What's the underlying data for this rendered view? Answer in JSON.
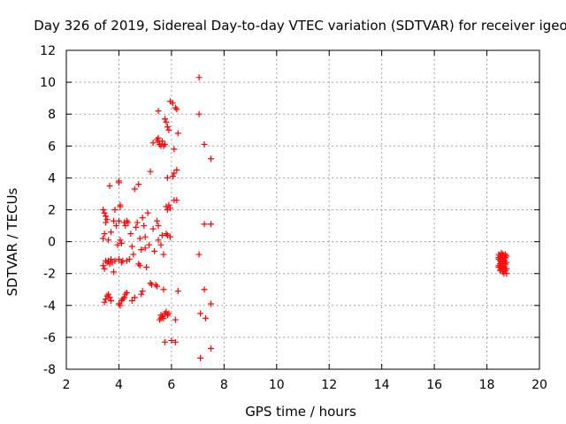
{
  "chart_data": {
    "type": "scatter",
    "title": "Day 326 of 2019, Sidereal Day-to-day VTEC variation (SDTVAR) for receiver igeo",
    "xlabel": "GPS time / hours",
    "ylabel": "SDTVAR / TECUs",
    "xlim": [
      2,
      20
    ],
    "ylim": [
      -8,
      12
    ],
    "xticks": [
      2,
      4,
      6,
      8,
      10,
      12,
      14,
      16,
      18,
      20
    ],
    "xtick_labels": [
      "2",
      "4",
      "6",
      "8",
      "10",
      "12",
      "14",
      "16",
      "18",
      "20"
    ],
    "yticks": [
      -8,
      -6,
      -4,
      -2,
      0,
      2,
      4,
      6,
      8,
      10,
      12
    ],
    "ytick_labels": [
      "-8",
      "-6",
      "-4",
      "-2",
      "0",
      "2",
      "4",
      "6",
      "8",
      "10",
      "12"
    ],
    "grid": true,
    "marker": "+",
    "color": "#ff0000",
    "series": [
      {
        "name": "SDTVAR",
        "points": [
          [
            3.4,
            2.0
          ],
          [
            3.45,
            1.8
          ],
          [
            3.5,
            1.6
          ],
          [
            3.55,
            1.4
          ],
          [
            3.5,
            1.2
          ],
          [
            3.45,
            0.5
          ],
          [
            3.4,
            0.2
          ],
          [
            3.6,
            0.1
          ],
          [
            3.65,
            3.5
          ],
          [
            3.7,
            0.6
          ],
          [
            3.5,
            -1.2
          ],
          [
            3.4,
            -1.5
          ],
          [
            3.45,
            -1.7
          ],
          [
            3.55,
            -1.3
          ],
          [
            3.6,
            -1.2
          ],
          [
            3.65,
            -1.4
          ],
          [
            3.7,
            -1.1
          ],
          [
            3.75,
            -1.3
          ],
          [
            3.8,
            -1.9
          ],
          [
            3.85,
            -1.2
          ],
          [
            3.45,
            -3.8
          ],
          [
            3.5,
            -3.6
          ],
          [
            3.55,
            -3.4
          ],
          [
            3.6,
            -3.3
          ],
          [
            3.65,
            -3.5
          ],
          [
            3.7,
            -3.7
          ],
          [
            3.8,
            1.3
          ],
          [
            3.85,
            2.0
          ],
          [
            3.9,
            1.0
          ],
          [
            3.95,
            -0.2
          ],
          [
            4.0,
            3.7
          ],
          [
            4.0,
            3.8
          ],
          [
            4.05,
            2.3
          ],
          [
            4.05,
            2.2
          ],
          [
            4.0,
            1.3
          ],
          [
            4.05,
            0.1
          ],
          [
            4.1,
            -0.1
          ],
          [
            4.0,
            -1.1
          ],
          [
            4.1,
            -1.3
          ],
          [
            4.15,
            -1.2
          ],
          [
            4.0,
            -3.9
          ],
          [
            4.05,
            -4.0
          ],
          [
            4.1,
            -3.7
          ],
          [
            4.15,
            -3.6
          ],
          [
            4.2,
            -3.5
          ],
          [
            4.25,
            -3.3
          ],
          [
            4.3,
            -3.2
          ],
          [
            4.2,
            1.2
          ],
          [
            4.25,
            1.0
          ],
          [
            4.3,
            1.3
          ],
          [
            4.35,
            1.2
          ],
          [
            4.3,
            -1.2
          ],
          [
            4.4,
            -1.1
          ],
          [
            4.45,
            0.5
          ],
          [
            4.5,
            -0.3
          ],
          [
            4.55,
            -0.8
          ],
          [
            4.5,
            -3.7
          ],
          [
            4.6,
            -3.5
          ],
          [
            4.6,
            3.3
          ],
          [
            4.65,
            0.9
          ],
          [
            4.7,
            1.2
          ],
          [
            4.75,
            -1.4
          ],
          [
            4.75,
            3.6
          ],
          [
            4.8,
            0.2
          ],
          [
            4.85,
            -0.5
          ],
          [
            4.8,
            -1.5
          ],
          [
            4.85,
            -3.3
          ],
          [
            4.9,
            -3.1
          ],
          [
            4.9,
            1.5
          ],
          [
            4.95,
            1.0
          ],
          [
            5.0,
            0.3
          ],
          [
            5.0,
            -0.4
          ],
          [
            5.05,
            -1.6
          ],
          [
            5.1,
            1.8
          ],
          [
            5.15,
            -0.2
          ],
          [
            5.2,
            4.4
          ],
          [
            5.2,
            -2.6
          ],
          [
            5.25,
            -2.7
          ],
          [
            5.3,
            6.2
          ],
          [
            5.3,
            0.8
          ],
          [
            5.35,
            -0.6
          ],
          [
            5.4,
            -2.7
          ],
          [
            5.45,
            6.4
          ],
          [
            5.45,
            1.3
          ],
          [
            5.45,
            -2.8
          ],
          [
            5.5,
            8.2
          ],
          [
            5.5,
            6.5
          ],
          [
            5.5,
            6.3
          ],
          [
            5.5,
            1.0
          ],
          [
            5.5,
            0.1
          ],
          [
            5.55,
            6.1
          ],
          [
            5.55,
            -4.9
          ],
          [
            5.6,
            6.0
          ],
          [
            5.6,
            -0.2
          ],
          [
            5.6,
            -4.8
          ],
          [
            5.6,
            -4.6
          ],
          [
            5.65,
            6.3
          ],
          [
            5.65,
            0.4
          ],
          [
            5.65,
            -4.7
          ],
          [
            5.7,
            6.0
          ],
          [
            5.7,
            -0.8
          ],
          [
            5.7,
            -4.8
          ],
          [
            5.7,
            -3.0
          ],
          [
            5.75,
            6.1
          ],
          [
            5.75,
            7.7
          ],
          [
            5.75,
            -4.5
          ],
          [
            5.75,
            -6.3
          ],
          [
            5.8,
            7.5
          ],
          [
            5.8,
            2.2
          ],
          [
            5.8,
            0.5
          ],
          [
            5.8,
            -4.4
          ],
          [
            5.85,
            7.2
          ],
          [
            5.85,
            2.0
          ],
          [
            5.85,
            0.4
          ],
          [
            5.85,
            -4.6
          ],
          [
            5.85,
            4.0
          ],
          [
            5.9,
            7.0
          ],
          [
            5.9,
            2.3
          ],
          [
            5.9,
            -4.5
          ],
          [
            5.95,
            8.8
          ],
          [
            5.95,
            0.3
          ],
          [
            5.95,
            2.1
          ],
          [
            6.0,
            -6.2
          ],
          [
            6.05,
            8.7
          ],
          [
            6.05,
            4.1
          ],
          [
            6.1,
            2.6
          ],
          [
            6.1,
            5.8
          ],
          [
            6.1,
            4.3
          ],
          [
            6.15,
            8.4
          ],
          [
            6.15,
            -4.9
          ],
          [
            6.15,
            -6.3
          ],
          [
            6.2,
            8.3
          ],
          [
            6.2,
            4.5
          ],
          [
            6.2,
            2.6
          ],
          [
            6.25,
            6.8
          ],
          [
            6.25,
            -3.1
          ],
          [
            7.05,
            10.3
          ],
          [
            7.05,
            8.0
          ],
          [
            7.05,
            -0.8
          ],
          [
            7.1,
            -4.5
          ],
          [
            7.1,
            -7.3
          ],
          [
            7.25,
            6.1
          ],
          [
            7.25,
            1.1
          ],
          [
            7.25,
            -3.0
          ],
          [
            7.3,
            -4.8
          ],
          [
            7.5,
            5.2
          ],
          [
            7.5,
            1.1
          ],
          [
            7.5,
            -3.9
          ],
          [
            7.5,
            -6.7
          ],
          [
            18.45,
            -0.8
          ],
          [
            18.45,
            -1.0
          ],
          [
            18.45,
            -1.1
          ],
          [
            18.45,
            -1.5
          ],
          [
            18.45,
            -1.6
          ],
          [
            18.5,
            -0.9
          ],
          [
            18.5,
            -1.2
          ],
          [
            18.5,
            -1.4
          ],
          [
            18.5,
            -1.8
          ],
          [
            18.55,
            -0.7
          ],
          [
            18.55,
            -1.0
          ],
          [
            18.55,
            -1.3
          ],
          [
            18.55,
            -1.7
          ],
          [
            18.6,
            -0.8
          ],
          [
            18.6,
            -1.1
          ],
          [
            18.6,
            -1.5
          ],
          [
            18.6,
            -1.9
          ],
          [
            18.65,
            -0.9
          ],
          [
            18.65,
            -1.2
          ],
          [
            18.65,
            -1.6
          ],
          [
            18.65,
            -2.0
          ],
          [
            18.7,
            -0.8
          ],
          [
            18.7,
            -1.0
          ],
          [
            18.7,
            -1.4
          ],
          [
            18.7,
            -1.8
          ],
          [
            18.75,
            -0.9
          ],
          [
            18.75,
            -1.3
          ],
          [
            18.75,
            -1.7
          ],
          [
            18.75,
            -2.0
          ]
        ]
      }
    ]
  }
}
